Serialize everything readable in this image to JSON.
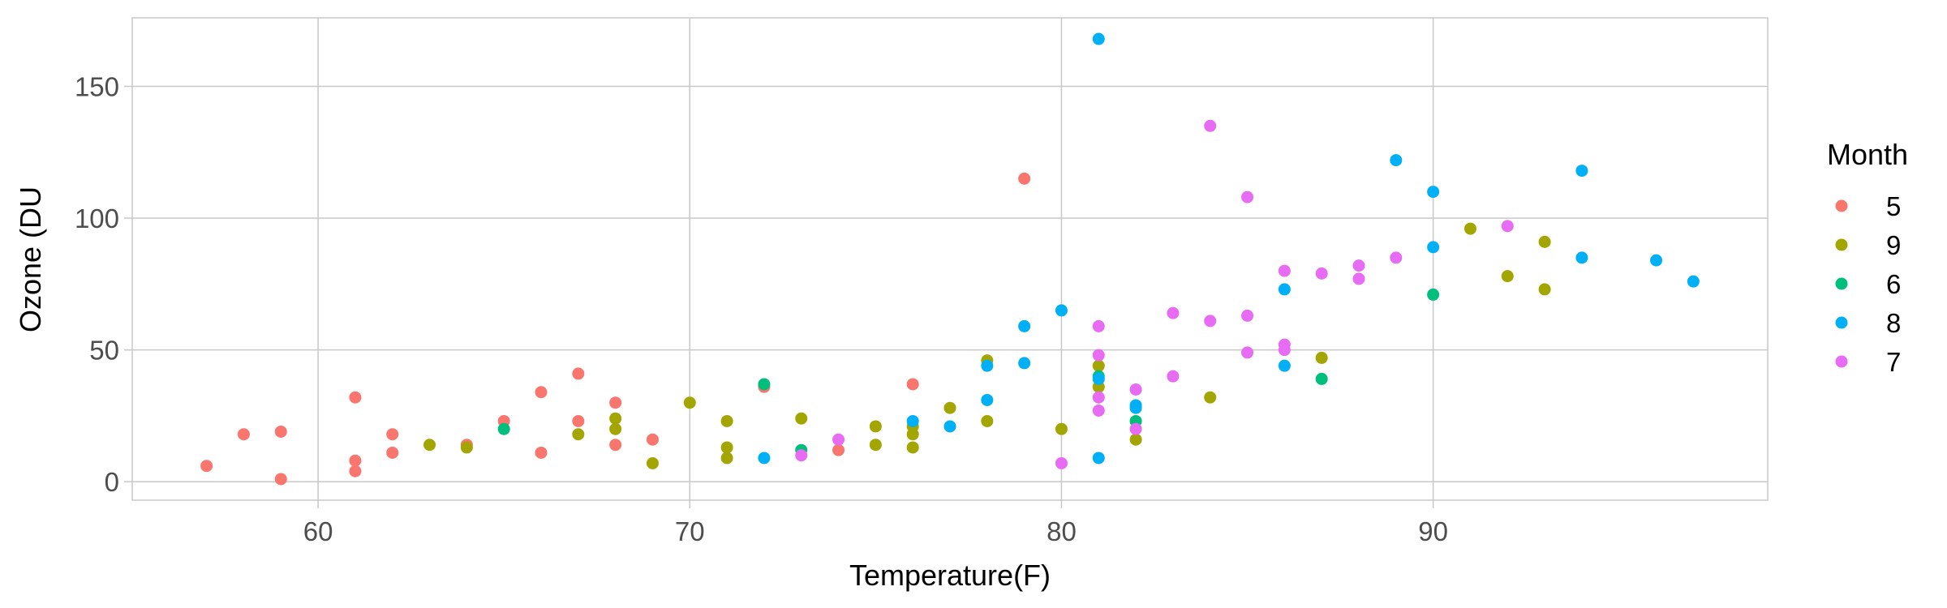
{
  "chart_data": {
    "type": "scatter",
    "title": "",
    "xlabel": "Temperature(F)",
    "ylabel": "Ozone (DU",
    "xlim": [
      55,
      99
    ],
    "ylim": [
      -7,
      176
    ],
    "x_ticks": [
      60,
      70,
      80,
      90
    ],
    "y_ticks": [
      0,
      50,
      100,
      150
    ],
    "grid": true,
    "legend": {
      "title": "Month",
      "placement": "right"
    },
    "series": [
      {
        "name": "5",
        "color": "#F8766D",
        "points": [
          [
            57,
            6
          ],
          [
            58,
            18
          ],
          [
            59,
            1
          ],
          [
            59,
            19
          ],
          [
            61,
            32
          ],
          [
            61,
            8
          ],
          [
            61,
            4
          ],
          [
            62,
            18
          ],
          [
            62,
            11
          ],
          [
            64,
            14
          ],
          [
            65,
            23
          ],
          [
            66,
            34
          ],
          [
            66,
            11
          ],
          [
            67,
            41
          ],
          [
            67,
            23
          ],
          [
            68,
            30
          ],
          [
            68,
            14
          ],
          [
            69,
            16
          ],
          [
            72,
            36
          ],
          [
            74,
            12
          ],
          [
            76,
            37
          ],
          [
            79,
            115
          ]
        ]
      },
      {
        "name": "9",
        "color": "#A3A500",
        "points": [
          [
            63,
            14
          ],
          [
            64,
            13
          ],
          [
            67,
            18
          ],
          [
            68,
            20
          ],
          [
            68,
            24
          ],
          [
            69,
            7
          ],
          [
            70,
            30
          ],
          [
            71,
            23
          ],
          [
            71,
            13
          ],
          [
            71,
            9
          ],
          [
            73,
            24
          ],
          [
            75,
            21
          ],
          [
            75,
            14
          ],
          [
            76,
            21
          ],
          [
            76,
            18
          ],
          [
            76,
            13
          ],
          [
            77,
            28
          ],
          [
            78,
            46
          ],
          [
            78,
            23
          ],
          [
            80,
            20
          ],
          [
            81,
            44
          ],
          [
            81,
            36
          ],
          [
            82,
            16
          ],
          [
            84,
            32
          ],
          [
            87,
            47
          ],
          [
            91,
            96
          ],
          [
            92,
            78
          ],
          [
            93,
            91
          ],
          [
            93,
            73
          ]
        ]
      },
      {
        "name": "6",
        "color": "#00BF7D",
        "points": [
          [
            65,
            20
          ],
          [
            72,
            37
          ],
          [
            73,
            12
          ],
          [
            81,
            40
          ],
          [
            82,
            23
          ],
          [
            87,
            39
          ],
          [
            90,
            71
          ]
        ]
      },
      {
        "name": "8",
        "color": "#00B0F6",
        "points": [
          [
            72,
            9
          ],
          [
            76,
            23
          ],
          [
            77,
            21
          ],
          [
            78,
            44
          ],
          [
            78,
            31
          ],
          [
            79,
            59
          ],
          [
            79,
            45
          ],
          [
            80,
            65
          ],
          [
            81,
            168
          ],
          [
            81,
            39
          ],
          [
            81,
            9
          ],
          [
            82,
            28
          ],
          [
            82,
            29
          ],
          [
            86,
            73
          ],
          [
            86,
            44
          ],
          [
            89,
            122
          ],
          [
            90,
            110
          ],
          [
            90,
            89
          ],
          [
            94,
            118
          ],
          [
            94,
            85
          ],
          [
            96,
            84
          ],
          [
            97,
            76
          ]
        ]
      },
      {
        "name": "7",
        "color": "#E76BF3",
        "points": [
          [
            73,
            10
          ],
          [
            74,
            16
          ],
          [
            80,
            7
          ],
          [
            81,
            59
          ],
          [
            81,
            48
          ],
          [
            81,
            32
          ],
          [
            81,
            27
          ],
          [
            82,
            35
          ],
          [
            82,
            20
          ],
          [
            83,
            64
          ],
          [
            83,
            40
          ],
          [
            84,
            135
          ],
          [
            84,
            61
          ],
          [
            85,
            108
          ],
          [
            85,
            63
          ],
          [
            85,
            49
          ],
          [
            86,
            80
          ],
          [
            86,
            52
          ],
          [
            86,
            50
          ],
          [
            87,
            79
          ],
          [
            88,
            82
          ],
          [
            88,
            77
          ],
          [
            89,
            85
          ],
          [
            92,
            97
          ]
        ]
      }
    ]
  }
}
